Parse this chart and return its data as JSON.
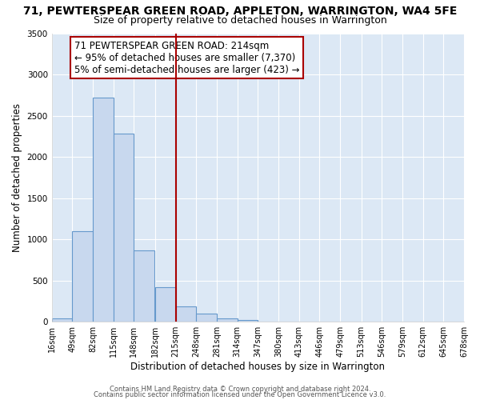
{
  "title": "71, PEWTERSPEAR GREEN ROAD, APPLETON, WARRINGTON, WA4 5FE",
  "subtitle": "Size of property relative to detached houses in Warrington",
  "xlabel": "Distribution of detached houses by size in Warrington",
  "ylabel": "Number of detached properties",
  "bar_left_edges": [
    16,
    49,
    82,
    115,
    148,
    182,
    215,
    248,
    281,
    314,
    347,
    380,
    413,
    446,
    479,
    513,
    546,
    579,
    612,
    645
  ],
  "bar_heights": [
    45,
    1100,
    2720,
    2280,
    870,
    415,
    185,
    95,
    45,
    25,
    0,
    0,
    0,
    0,
    0,
    0,
    0,
    0,
    0,
    0
  ],
  "bin_width": 33,
  "tick_labels": [
    "16sqm",
    "49sqm",
    "82sqm",
    "115sqm",
    "148sqm",
    "182sqm",
    "215sqm",
    "248sqm",
    "281sqm",
    "314sqm",
    "347sqm",
    "380sqm",
    "413sqm",
    "446sqm",
    "479sqm",
    "513sqm",
    "546sqm",
    "579sqm",
    "612sqm",
    "645sqm",
    "678sqm"
  ],
  "bar_color": "#c8d8ee",
  "bar_edge_color": "#6699cc",
  "vline_x": 215,
  "vline_color": "#aa0000",
  "annotation_title": "71 PEWTERSPEAR GREEN ROAD: 214sqm",
  "annotation_line1": "← 95% of detached houses are smaller (7,370)",
  "annotation_line2": "5% of semi-detached houses are larger (423) →",
  "annotation_box_color": "#ffffff",
  "annotation_box_edge": "#aa0000",
  "ylim": [
    0,
    3500
  ],
  "yticks": [
    0,
    500,
    1000,
    1500,
    2000,
    2500,
    3000,
    3500
  ],
  "footer1": "Contains HM Land Registry data © Crown copyright and database right 2024.",
  "footer2": "Contains public sector information licensed under the Open Government Licence v3.0.",
  "plot_bg_color": "#dce8f5",
  "fig_bg_color": "#ffffff",
  "grid_color": "#ffffff",
  "title_fontsize": 10,
  "subtitle_fontsize": 9,
  "annotation_fontsize": 8.5,
  "tick_fontsize": 7,
  "axis_label_fontsize": 8.5,
  "footer_fontsize": 6
}
